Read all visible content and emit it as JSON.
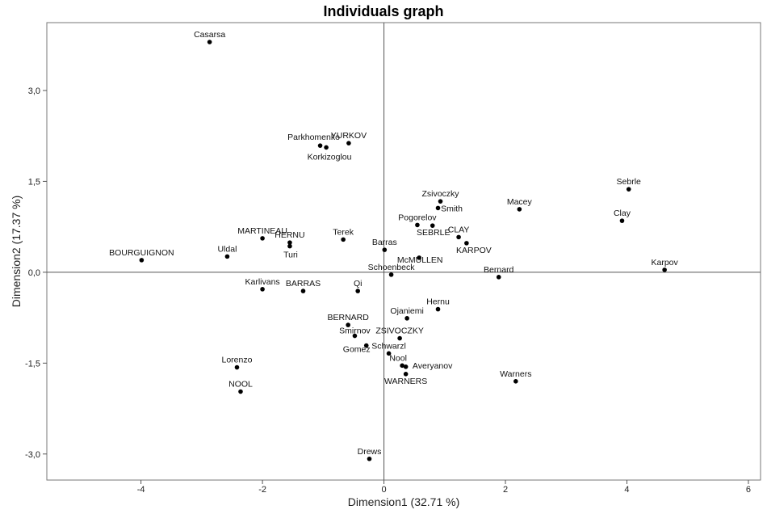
{
  "chart_data": {
    "type": "scatter",
    "title": "Individuals graph",
    "xlabel": "Dimension1 (32.71 %)",
    "ylabel": "Dimension2 (17.37 %)",
    "xlim": [
      -5.55,
      6.2
    ],
    "ylim": [
      -3.43,
      4.12
    ],
    "x_ticks": [
      -4,
      -2,
      0,
      2,
      4,
      6
    ],
    "x_tick_labels": [
      "-4",
      "-2",
      "0",
      "2",
      "4",
      "6"
    ],
    "y_ticks": [
      3.0,
      1.5,
      0.0,
      -1.5,
      -3.0
    ],
    "y_tick_labels": [
      "3,0",
      "1,5",
      "0,0",
      "-1,5",
      "-3,0"
    ],
    "grid": false,
    "reference_lines": [
      "x=0",
      "y=0"
    ],
    "point_color": "#000000",
    "points": [
      {
        "label": "Casarsa",
        "x": -2.87,
        "y": 3.8
      },
      {
        "label": "Parkhomenko",
        "x": -1.05,
        "y": 2.09
      },
      {
        "label": "YURKOV",
        "x": -0.58,
        "y": 2.13
      },
      {
        "label": "Korkizoglou",
        "x": -0.95,
        "y": 2.06
      },
      {
        "label": "Sebrle",
        "x": 4.03,
        "y": 1.37
      },
      {
        "label": "Zsivoczky",
        "x": 0.93,
        "y": 1.17
      },
      {
        "label": "Smith",
        "x": 0.89,
        "y": 1.06
      },
      {
        "label": "Macey",
        "x": 2.23,
        "y": 1.04
      },
      {
        "label": "Clay",
        "x": 3.92,
        "y": 0.85
      },
      {
        "label": "Pogorelov",
        "x": 0.55,
        "y": 0.78
      },
      {
        "label": "SEBRLE",
        "x": 0.8,
        "y": 0.77
      },
      {
        "label": "CLAY",
        "x": 1.23,
        "y": 0.58
      },
      {
        "label": "KARPOV",
        "x": 1.36,
        "y": 0.48
      },
      {
        "label": "MARTINEAU",
        "x": -2.0,
        "y": 0.56
      },
      {
        "label": "HERNU",
        "x": -1.55,
        "y": 0.49
      },
      {
        "label": "Turi",
        "x": -1.55,
        "y": 0.43
      },
      {
        "label": "Terek",
        "x": -0.67,
        "y": 0.54
      },
      {
        "label": "Barras",
        "x": 0.01,
        "y": 0.37
      },
      {
        "label": "McMULLEN",
        "x": 0.58,
        "y": 0.24
      },
      {
        "label": "Uldal",
        "x": -2.58,
        "y": 0.26
      },
      {
        "label": "BOURGUIGNON",
        "x": -3.99,
        "y": 0.2
      },
      {
        "label": "Karpov",
        "x": 4.62,
        "y": 0.04
      },
      {
        "label": "Schoenbeck",
        "x": 0.12,
        "y": -0.04
      },
      {
        "label": "Bernard",
        "x": 1.89,
        "y": -0.08
      },
      {
        "label": "Karlivans",
        "x": -2.0,
        "y": -0.28
      },
      {
        "label": "BARRAS",
        "x": -1.33,
        "y": -0.31
      },
      {
        "label": "Qi",
        "x": -0.43,
        "y": -0.31
      },
      {
        "label": "Hernu",
        "x": 0.89,
        "y": -0.61
      },
      {
        "label": "Ojaniemi",
        "x": 0.38,
        "y": -0.76
      },
      {
        "label": "BERNARD",
        "x": -0.59,
        "y": -0.87
      },
      {
        "label": "Smirnov",
        "x": -0.48,
        "y": -1.05
      },
      {
        "label": "ZSIVOCZKY",
        "x": 0.26,
        "y": -1.09
      },
      {
        "label": "Gomez",
        "x": -0.29,
        "y": -1.21
      },
      {
        "label": "Schwarzl",
        "x": 0.08,
        "y": -1.34
      },
      {
        "label": "Nool",
        "x": 0.3,
        "y": -1.54
      },
      {
        "label": "Averyanov",
        "x": 0.36,
        "y": -1.56
      },
      {
        "label": "WARNERS",
        "x": 0.36,
        "y": -1.68
      },
      {
        "label": "Warners",
        "x": 2.17,
        "y": -1.8
      },
      {
        "label": "Lorenzo",
        "x": -2.42,
        "y": -1.57
      },
      {
        "label": "NOOL",
        "x": -2.36,
        "y": -1.97
      },
      {
        "label": "Drews",
        "x": -0.24,
        "y": -3.08
      }
    ]
  }
}
